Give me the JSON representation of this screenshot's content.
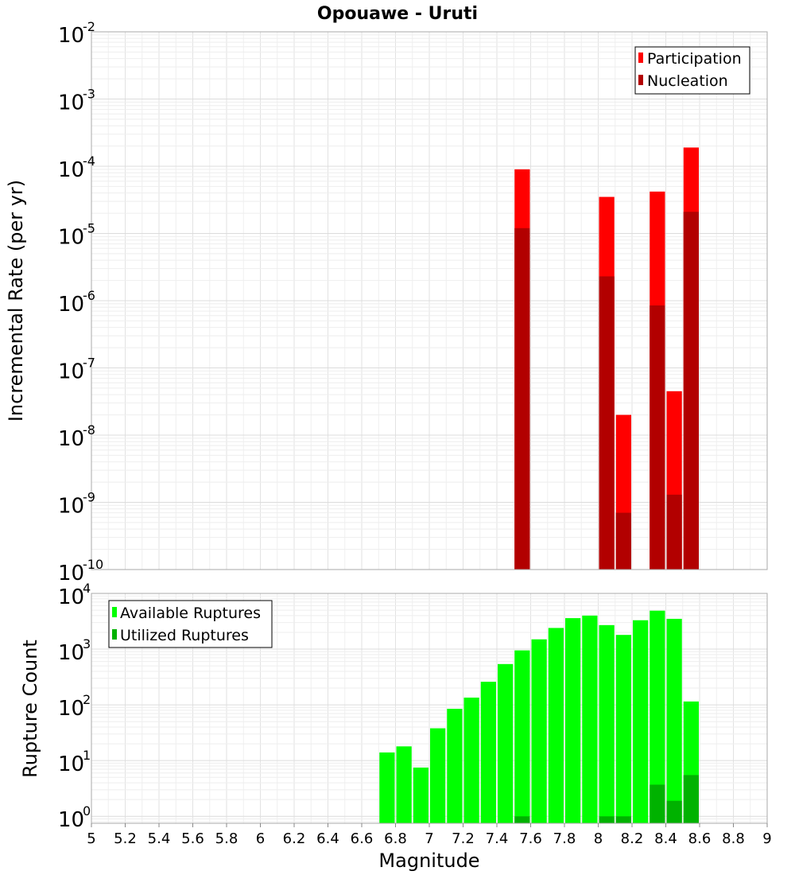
{
  "chart_data": [
    {
      "type": "bar",
      "title": "Opouawe - Uruti",
      "ylabel": "Incremental Rate (per yr)",
      "yscale": "log",
      "ylim": [
        1e-10,
        0.01
      ],
      "xlim": [
        5,
        9
      ],
      "yticks": [
        {
          "base": "10",
          "exp": "-10"
        },
        {
          "base": "10",
          "exp": "-9"
        },
        {
          "base": "10",
          "exp": "-8"
        },
        {
          "base": "10",
          "exp": "-7"
        },
        {
          "base": "10",
          "exp": "-6"
        },
        {
          "base": "10",
          "exp": "-5"
        },
        {
          "base": "10",
          "exp": "-4"
        },
        {
          "base": "10",
          "exp": "-3"
        },
        {
          "base": "10",
          "exp": "-2"
        }
      ],
      "bar_width": 0.1,
      "grid": true,
      "legend_position": "top-right",
      "series": [
        {
          "name": "Participation",
          "color": "#ff0000",
          "points": [
            {
              "x": 7.55,
              "y": 9e-05
            },
            {
              "x": 8.05,
              "y": 3.5e-05
            },
            {
              "x": 8.15,
              "y": 2e-08
            },
            {
              "x": 8.35,
              "y": 4.2e-05
            },
            {
              "x": 8.45,
              "y": 4.5e-08
            },
            {
              "x": 8.55,
              "y": 0.00019
            }
          ]
        },
        {
          "name": "Nucleation",
          "color": "#b20000",
          "points": [
            {
              "x": 7.55,
              "y": 1.2e-05
            },
            {
              "x": 8.05,
              "y": 2.3e-06
            },
            {
              "x": 8.15,
              "y": 7e-10
            },
            {
              "x": 8.35,
              "y": 8.5e-07
            },
            {
              "x": 8.45,
              "y": 1.3e-09
            },
            {
              "x": 8.55,
              "y": 2.1e-05
            }
          ]
        }
      ]
    },
    {
      "type": "bar",
      "ylabel": "Rupture Count",
      "xlabel": "Magnitude",
      "yscale": "log",
      "ylim": [
        0.75,
        10000
      ],
      "xlim": [
        5,
        9
      ],
      "yticks": [
        {
          "value": 1,
          "base": "10",
          "exp": "0"
        },
        {
          "value": 10,
          "base": "10",
          "exp": "1"
        },
        {
          "value": 100,
          "base": "10",
          "exp": "2"
        },
        {
          "value": 1000,
          "base": "10",
          "exp": "3"
        },
        {
          "value": 10000,
          "base": "10",
          "exp": "4"
        }
      ],
      "xticks": [
        "5",
        "5.2",
        "5.4",
        "5.6",
        "5.8",
        "6",
        "6.2",
        "6.4",
        "6.6",
        "6.8",
        "7",
        "7.2",
        "7.4",
        "7.6",
        "7.8",
        "8",
        "8.2",
        "8.4",
        "8.6",
        "8.8",
        "9"
      ],
      "bar_width": 0.1,
      "grid": true,
      "legend_position": "top-left",
      "series": [
        {
          "name": "Available Ruptures",
          "color": "#00ff00",
          "points": [
            {
              "x": 6.75,
              "y": 14
            },
            {
              "x": 6.85,
              "y": 18
            },
            {
              "x": 6.95,
              "y": 7.5
            },
            {
              "x": 7.05,
              "y": 38
            },
            {
              "x": 7.15,
              "y": 85
            },
            {
              "x": 7.25,
              "y": 135
            },
            {
              "x": 7.35,
              "y": 260
            },
            {
              "x": 7.45,
              "y": 540
            },
            {
              "x": 7.55,
              "y": 950
            },
            {
              "x": 7.65,
              "y": 1500
            },
            {
              "x": 7.75,
              "y": 2400
            },
            {
              "x": 7.85,
              "y": 3600
            },
            {
              "x": 7.95,
              "y": 4000
            },
            {
              "x": 8.05,
              "y": 2700
            },
            {
              "x": 8.15,
              "y": 1800
            },
            {
              "x": 8.25,
              "y": 3300
            },
            {
              "x": 8.35,
              "y": 4900
            },
            {
              "x": 8.45,
              "y": 3500
            },
            {
              "x": 8.55,
              "y": 115
            }
          ]
        },
        {
          "name": "Utilized Ruptures",
          "color": "#00b200",
          "points": [
            {
              "x": 7.55,
              "y": 1
            },
            {
              "x": 8.05,
              "y": 1
            },
            {
              "x": 8.15,
              "y": 1
            },
            {
              "x": 8.35,
              "y": 3.7
            },
            {
              "x": 8.45,
              "y": 1.9
            },
            {
              "x": 8.55,
              "y": 5.5
            }
          ]
        }
      ]
    }
  ]
}
